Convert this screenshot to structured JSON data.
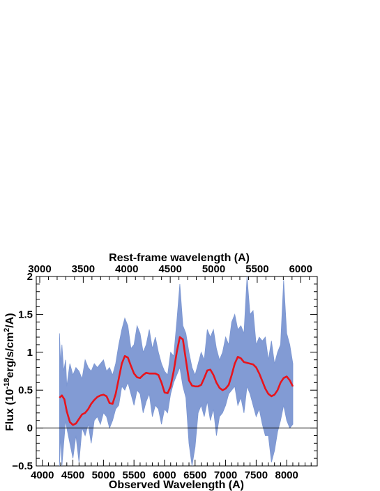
{
  "chart_data": {
    "type": "line",
    "title": "",
    "xlabel": "Observed Wavelength (A)",
    "x2label": "Rest-frame wavelength (A)",
    "ylabel_prefix": "Flux (10",
    "ylabel_exp": "-18",
    "ylabel_mid": "erg/s/cm",
    "ylabel_exp2": "2",
    "ylabel_suffix": "/A)",
    "xlim": [
      3900,
      8500
    ],
    "ylim": [
      -0.5,
      2
    ],
    "x_ticks": [
      "4000",
      "4500",
      "5000",
      "5500",
      "6000",
      "6500",
      "7000",
      "7500",
      "8000"
    ],
    "x_tick_values": [
      4000,
      4500,
      5000,
      5500,
      6000,
      6500,
      7000,
      7500,
      8000
    ],
    "x2_ticks": [
      "3000",
      "3500",
      "4000",
      "4500",
      "5000",
      "5500",
      "6000"
    ],
    "x2_tick_values": [
      3000,
      3500,
      4000,
      4500,
      5000,
      5500,
      6000
    ],
    "x2lim": [
      2960,
      6190
    ],
    "y_ticks": [
      "−0.5",
      "0",
      "0.5",
      "1",
      "1.5",
      "2"
    ],
    "y_tick_values": [
      -0.5,
      0,
      0.5,
      1,
      1.5,
      2
    ],
    "zero_line": 0,
    "colors": {
      "spectrum": "#7b96d2",
      "model": "#e8141c",
      "zero": "#000000"
    },
    "series": [
      {
        "role": "spectrum-band",
        "x": [
          4280,
          4300,
          4320,
          4350,
          4380,
          4400,
          4450,
          4500,
          4550,
          4600,
          4650,
          4700,
          4750,
          4800,
          4850,
          4900,
          4950,
          5000,
          5050,
          5100,
          5150,
          5200,
          5250,
          5300,
          5350,
          5400,
          5450,
          5500,
          5550,
          5600,
          5650,
          5700,
          5750,
          5800,
          5850,
          5900,
          5950,
          6000,
          6050,
          6100,
          6150,
          6200,
          6250,
          6300,
          6350,
          6400,
          6450,
          6500,
          6550,
          6600,
          6650,
          6700,
          6750,
          6800,
          6850,
          6900,
          6950,
          7000,
          7050,
          7100,
          7150,
          7200,
          7250,
          7300,
          7350,
          7400,
          7450,
          7500,
          7550,
          7600,
          7650,
          7700,
          7750,
          7800,
          7850,
          7900,
          7950,
          8000,
          8050,
          8100
        ],
        "upper": [
          1.25,
          0.85,
          1.1,
          0.75,
          0.9,
          0.55,
          0.85,
          0.7,
          0.8,
          0.75,
          0.65,
          0.9,
          0.8,
          0.75,
          0.85,
          0.8,
          0.85,
          0.9,
          0.75,
          0.8,
          0.7,
          0.85,
          1.1,
          1.3,
          1.45,
          1.35,
          1.05,
          1.1,
          1.35,
          1.25,
          1.0,
          1.1,
          1.3,
          1.05,
          1.2,
          1.0,
          0.85,
          0.75,
          0.7,
          1.0,
          0.95,
          1.4,
          1.9,
          1.35,
          1.25,
          1.0,
          0.8,
          0.7,
          0.85,
          1.0,
          0.9,
          1.3,
          1.2,
          1.3,
          1.05,
          0.9,
          1.0,
          1.2,
          1.1,
          1.4,
          1.5,
          1.3,
          1.35,
          1.25,
          2.0,
          1.5,
          1.55,
          1.1,
          1.2,
          1.15,
          1.2,
          0.9,
          1.15,
          0.85,
          1.0,
          1.1,
          1.95,
          1.25,
          1.1,
          0.85
        ],
        "lower": [
          -0.5,
          -0.1,
          -0.5,
          -0.2,
          0.1,
          0.0,
          -0.2,
          -0.4,
          -0.1,
          -0.45,
          0.0,
          -0.1,
          0.05,
          -0.2,
          0.1,
          0.15,
          0.05,
          0.2,
          0.15,
          0.0,
          0.1,
          0.25,
          0.3,
          0.55,
          0.5,
          0.6,
          0.45,
          0.3,
          0.5,
          0.45,
          0.2,
          0.35,
          0.45,
          0.15,
          0.3,
          0.25,
          0.05,
          0.25,
          0.2,
          0.45,
          0.6,
          0.7,
          0.8,
          0.55,
          0.4,
          -0.2,
          -0.5,
          -0.25,
          0.2,
          0.3,
          0.15,
          0.35,
          0.1,
          0.25,
          -0.1,
          0.15,
          0.2,
          0.3,
          0.45,
          0.5,
          0.55,
          0.3,
          0.4,
          0.2,
          0.55,
          0.45,
          0.3,
          0.15,
          0.25,
          0.05,
          -0.1,
          -0.1,
          -0.45,
          -0.3,
          -0.05,
          0.1,
          0.3,
          0.1,
          0.0,
          0.05
        ]
      },
      {
        "role": "model",
        "x": [
          4280,
          4320,
          4360,
          4400,
          4450,
          4500,
          4550,
          4600,
          4650,
          4700,
          4750,
          4800,
          4850,
          4900,
          4950,
          5000,
          5050,
          5100,
          5150,
          5200,
          5250,
          5300,
          5350,
          5400,
          5450,
          5500,
          5550,
          5600,
          5650,
          5700,
          5750,
          5800,
          5850,
          5900,
          5950,
          6000,
          6050,
          6100,
          6150,
          6200,
          6250,
          6300,
          6350,
          6400,
          6450,
          6500,
          6550,
          6600,
          6650,
          6700,
          6750,
          6800,
          6850,
          6900,
          6950,
          7000,
          7050,
          7100,
          7150,
          7200,
          7250,
          7300,
          7350,
          7400,
          7450,
          7500,
          7550,
          7600,
          7650,
          7700,
          7750,
          7800,
          7850,
          7900,
          7950,
          8000,
          8050,
          8100
        ],
        "y": [
          0.4,
          0.43,
          0.38,
          0.22,
          0.08,
          0.04,
          0.06,
          0.12,
          0.18,
          0.2,
          0.25,
          0.32,
          0.37,
          0.41,
          0.43,
          0.44,
          0.42,
          0.33,
          0.32,
          0.45,
          0.65,
          0.85,
          0.95,
          0.93,
          0.82,
          0.72,
          0.67,
          0.66,
          0.7,
          0.73,
          0.72,
          0.72,
          0.72,
          0.7,
          0.6,
          0.47,
          0.46,
          0.55,
          0.75,
          1.0,
          1.2,
          1.17,
          0.9,
          0.63,
          0.56,
          0.55,
          0.55,
          0.57,
          0.66,
          0.76,
          0.77,
          0.7,
          0.6,
          0.53,
          0.5,
          0.52,
          0.57,
          0.7,
          0.85,
          0.94,
          0.92,
          0.87,
          0.86,
          0.85,
          0.84,
          0.8,
          0.72,
          0.62,
          0.52,
          0.45,
          0.42,
          0.44,
          0.5,
          0.6,
          0.66,
          0.68,
          0.63,
          0.55
        ]
      }
    ]
  }
}
